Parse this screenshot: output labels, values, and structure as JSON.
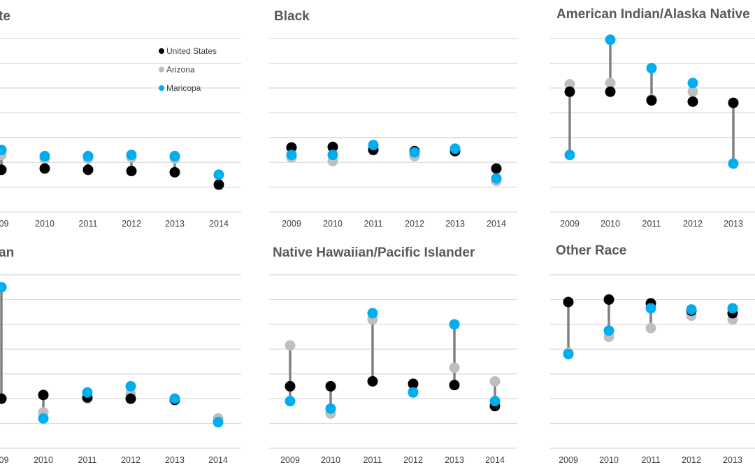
{
  "colors": {
    "united_states": "#000000",
    "arizona": "#bfbfbf",
    "maricopa": "#00aeef",
    "connector": "#808080",
    "gridline": "#d9d9d9",
    "text": "#595959"
  },
  "legend": [
    {
      "name": "United States",
      "color": "#000000"
    },
    {
      "name": "Arizona",
      "color": "#bfbfbf"
    },
    {
      "name": "Maricopa",
      "color": "#00aeef"
    }
  ],
  "chart_data": [
    {
      "type": "scatter",
      "title": "te",
      "categories": [
        "009",
        "2010",
        "2011",
        "2012",
        "2013",
        "2014"
      ],
      "ylim": [
        0,
        7
      ],
      "legend_position": "top-right",
      "series": [
        {
          "name": "United States",
          "values": [
            1.7,
            1.75,
            1.7,
            1.65,
            1.6,
            1.1
          ]
        },
        {
          "name": "Arizona",
          "values": [
            2.3,
            2.15,
            2.15,
            2.2,
            2.15,
            null
          ]
        },
        {
          "name": "Maricopa",
          "values": [
            2.5,
            2.25,
            2.25,
            2.3,
            2.25,
            1.5
          ]
        }
      ]
    },
    {
      "type": "scatter",
      "title": "Black",
      "categories": [
        "2009",
        "2010",
        "2011",
        "2012",
        "2013",
        "2014"
      ],
      "ylim": [
        0,
        7
      ],
      "series": [
        {
          "name": "United States",
          "values": [
            2.6,
            2.62,
            2.5,
            2.45,
            2.45,
            1.75
          ]
        },
        {
          "name": "Arizona",
          "values": [
            2.2,
            2.05,
            2.65,
            2.25,
            2.5,
            1.25
          ]
        },
        {
          "name": "Maricopa",
          "values": [
            2.3,
            2.3,
            2.7,
            2.4,
            2.55,
            1.35
          ]
        }
      ]
    },
    {
      "type": "scatter",
      "title": "American Indian/Alaska Native",
      "categories": [
        "2009",
        "2010",
        "2011",
        "2012",
        "2013"
      ],
      "ylim": [
        0,
        7
      ],
      "series": [
        {
          "name": "United States",
          "values": [
            4.85,
            4.85,
            4.5,
            4.45,
            4.4
          ]
        },
        {
          "name": "Arizona",
          "values": [
            5.15,
            5.2,
            4.55,
            4.85,
            4.4
          ]
        },
        {
          "name": "Maricopa",
          "values": [
            2.3,
            6.95,
            5.8,
            5.2,
            1.95
          ]
        }
      ]
    },
    {
      "type": "scatter",
      "title": "an",
      "categories": [
        "009",
        "2010",
        "2011",
        "2012",
        "2013",
        "2014"
      ],
      "ylim": [
        0,
        7
      ],
      "series": [
        {
          "name": "United States",
          "values": [
            2.0,
            2.15,
            2.05,
            2.0,
            1.95,
            null
          ]
        },
        {
          "name": "Arizona",
          "values": [
            2.0,
            1.45,
            2.0,
            2.2,
            2.0,
            1.2
          ]
        },
        {
          "name": "Maricopa",
          "values": [
            6.5,
            1.2,
            2.25,
            2.5,
            2.0,
            1.05
          ]
        }
      ]
    },
    {
      "type": "scatter",
      "title": "Native Hawaiian/Pacific Islander",
      "categories": [
        "2009",
        "2010",
        "2011",
        "2012",
        "2013",
        "2014"
      ],
      "ylim": [
        0,
        7
      ],
      "series": [
        {
          "name": "United States",
          "values": [
            2.5,
            2.5,
            2.7,
            2.6,
            2.55,
            1.7
          ]
        },
        {
          "name": "Arizona",
          "values": [
            4.15,
            1.4,
            5.2,
            2.3,
            3.25,
            2.7
          ]
        },
        {
          "name": "Maricopa",
          "values": [
            1.9,
            1.6,
            5.45,
            2.25,
            5.0,
            1.9
          ]
        }
      ]
    },
    {
      "type": "scatter",
      "title": "Other Race",
      "categories": [
        "2009",
        "2010",
        "2011",
        "2012",
        "2013"
      ],
      "ylim": [
        0,
        7
      ],
      "series": [
        {
          "name": "United States",
          "values": [
            5.9,
            6.0,
            5.85,
            5.55,
            5.45
          ]
        },
        {
          "name": "Arizona",
          "values": [
            3.85,
            4.5,
            4.85,
            5.35,
            5.2
          ]
        },
        {
          "name": "Maricopa",
          "values": [
            3.8,
            4.75,
            5.65,
            5.6,
            5.65
          ]
        }
      ]
    }
  ]
}
